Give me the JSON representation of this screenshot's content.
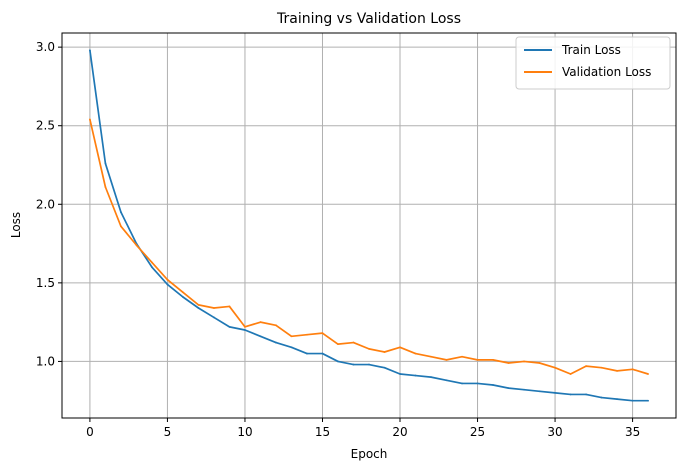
{
  "chart_data": {
    "type": "line",
    "title": "Training vs Validation Loss",
    "xlabel": "Epoch",
    "ylabel": "Loss",
    "xlim": [
      -1.8,
      37.8
    ],
    "ylim": [
      0.64,
      3.09
    ],
    "grid": true,
    "legend_position": "top-right",
    "x_ticks": [
      0,
      5,
      10,
      15,
      20,
      25,
      30,
      35
    ],
    "y_ticks": [
      1.0,
      1.5,
      2.0,
      2.5,
      3.0
    ],
    "x_tick_labels": [
      "0",
      "5",
      "10",
      "15",
      "20",
      "25",
      "30",
      "35"
    ],
    "y_tick_labels": [
      "1.0",
      "1.5",
      "2.0",
      "2.5",
      "3.0"
    ],
    "x": [
      0,
      1,
      2,
      3,
      4,
      5,
      6,
      7,
      8,
      9,
      10,
      11,
      12,
      13,
      14,
      15,
      16,
      17,
      18,
      19,
      20,
      21,
      22,
      23,
      24,
      25,
      26,
      27,
      28,
      29,
      30,
      31,
      32,
      33,
      34,
      35,
      36
    ],
    "series": [
      {
        "name": "Train Loss",
        "color": "#1f77b4",
        "values": [
          2.98,
          2.26,
          1.95,
          1.75,
          1.6,
          1.49,
          1.41,
          1.34,
          1.28,
          1.22,
          1.2,
          1.16,
          1.12,
          1.09,
          1.05,
          1.05,
          1.0,
          0.98,
          0.98,
          0.96,
          0.92,
          0.91,
          0.9,
          0.88,
          0.86,
          0.86,
          0.85,
          0.83,
          0.82,
          0.81,
          0.8,
          0.79,
          0.79,
          0.77,
          0.76,
          0.75,
          0.75
        ]
      },
      {
        "name": "Validation Loss",
        "color": "#ff7f0e",
        "values": [
          2.54,
          2.11,
          1.86,
          1.74,
          1.63,
          1.52,
          1.44,
          1.36,
          1.34,
          1.35,
          1.22,
          1.25,
          1.23,
          1.16,
          1.17,
          1.18,
          1.11,
          1.12,
          1.08,
          1.06,
          1.09,
          1.05,
          1.03,
          1.01,
          1.03,
          1.01,
          1.01,
          0.99,
          1.0,
          0.99,
          0.96,
          0.92,
          0.97,
          0.96,
          0.94,
          0.95,
          0.92
        ]
      }
    ]
  }
}
